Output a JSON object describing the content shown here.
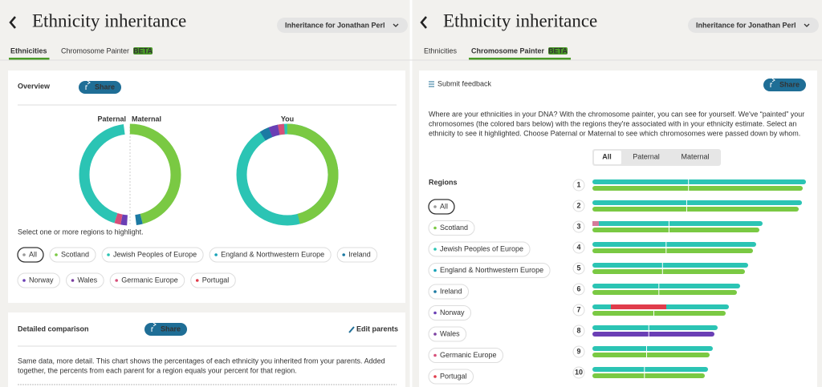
{
  "left": {
    "header": {
      "title": "Ethnicity inheritance",
      "dropdown": "Inheritance for Jonathan Perl"
    },
    "tabs": [
      "Ethnicities",
      "Chromosome Painter"
    ],
    "beta": "BETA",
    "overview": {
      "title": "Overview",
      "share": "Share",
      "paternal": "Paternal",
      "maternal": "Maternal",
      "you": "You",
      "prompt": "Select one or more regions to highlight.",
      "regions": [
        "All",
        "Scotland",
        "Jewish Peoples of Europe",
        "England & Northwestern Europe",
        "Ireland",
        "Norway",
        "Wales",
        "Germanic Europe",
        "Portugal"
      ]
    },
    "detailed": {
      "title": "Detailed comparison",
      "share": "Share",
      "edit": "Edit parents",
      "text": [
        "Same data, more detail. This chart shows the percentages of each ethnicity you inherited from your parents. Added",
        "together, the percents from each parent for a region equals your percent for that region."
      ]
    }
  },
  "right": {
    "header": {
      "title": "Ethnicity inheritance",
      "dropdown": "Inheritance for Jonathan Perl"
    },
    "tabs": [
      "Ethnicities",
      "Chromosome Painter"
    ],
    "beta": "BETA",
    "feedback": "Submit feedback",
    "share": "Share",
    "description": [
      "Where are your ethnicities in your DNA? With the chromosome painter, you can see for yourself. We've “painted” your",
      "chromosomes (the colored bars below) with the regions they're associated with in your ethnicity estimate. Select an",
      "ethnicity to see it highlighted. Choose Paternal or Maternal to see which chromosomes were passed down by whom."
    ],
    "segments": [
      "All",
      "Paternal",
      "Maternal"
    ],
    "regions_title": "Regions",
    "regions": [
      "All",
      "Scotland",
      "Jewish Peoples of Europe",
      "England & Northwestern Europe",
      "Ireland",
      "Norway",
      "Wales",
      "Germanic Europe",
      "Portugal"
    ],
    "chromosomes": [
      1,
      2,
      3,
      4,
      5,
      6,
      7,
      8,
      9,
      10
    ]
  }
}
